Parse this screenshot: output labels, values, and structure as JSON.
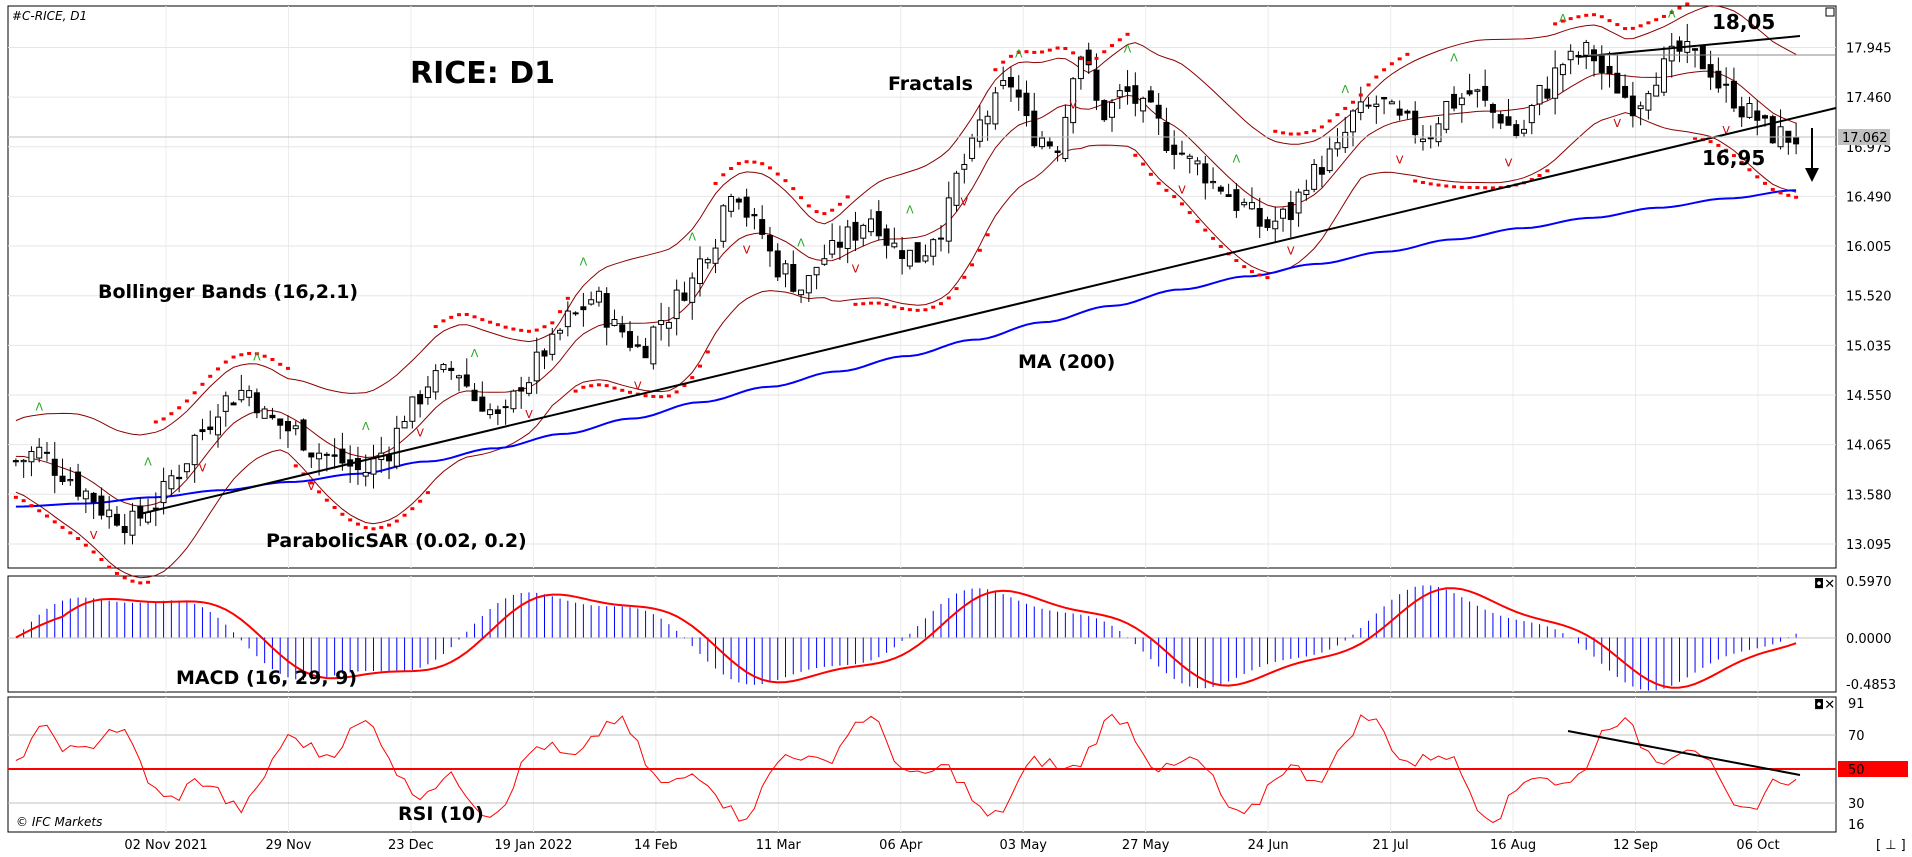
{
  "chart_data": [
    {
      "type": "candlestick",
      "title": "#C-RICE, D1",
      "heading": "RICE: D1",
      "x_tick_labels": [
        "02 Nov 2021",
        "29 Nov",
        "23 Dec",
        "19 Jan 2022",
        "14 Feb",
        "11 Mar",
        "06 Apr",
        "03 May",
        "27 May",
        "24 Jun",
        "21 Jul",
        "16 Aug",
        "12 Sep",
        "06 Oct"
      ],
      "y_tick_labels": [
        "17.945",
        "17.460",
        "16.975",
        "16.490",
        "16.005",
        "15.520",
        "15.035",
        "14.550",
        "14.065",
        "13.580",
        "13.095"
      ],
      "ylim": [
        12.86,
        18.35
      ],
      "current_price_label": "17.062",
      "annotations": {
        "bollinger": "Bollinger Bands (16,2.1)",
        "fractals": "Fractals",
        "ma": "MA (200)",
        "psar": "ParabolicSAR (0.02, 0.2)",
        "resistance": "18,05",
        "support": "16,95"
      },
      "series": [
        {
          "name": "MA (200)",
          "color": "#0000ff",
          "values": [
            13.46,
            13.49,
            13.55,
            13.62,
            13.7,
            13.78,
            13.9,
            14.03,
            14.17,
            14.32,
            14.48,
            14.63,
            14.78,
            14.93,
            15.09,
            15.26,
            15.42,
            15.58,
            15.71,
            15.83,
            15.95,
            16.07,
            16.18,
            16.28,
            16.38,
            16.47,
            16.55
          ]
        }
      ],
      "ohlc_approx": [
        13.9,
        14.0,
        13.8,
        13.6,
        13.4,
        13.3,
        13.5,
        13.8,
        14.2,
        14.5,
        14.6,
        14.3,
        14.2,
        14.0,
        13.9,
        13.8,
        14.0,
        14.4,
        14.7,
        14.8,
        14.5,
        14.3,
        14.7,
        15.0,
        15.3,
        15.5,
        15.2,
        15.0,
        15.3,
        15.6,
        16.0,
        16.6,
        16.2,
        15.8,
        15.6,
        15.9,
        16.1,
        16.3,
        16.0,
        15.9,
        16.2,
        16.8,
        17.3,
        17.6,
        17.1,
        17.0,
        17.9,
        17.3,
        17.5,
        17.3,
        17.0,
        16.8,
        16.6,
        16.4,
        16.2,
        16.3,
        16.7,
        16.9,
        17.3,
        17.4,
        17.2,
        17.1,
        17.4,
        17.5,
        17.3,
        17.1,
        17.5,
        17.8,
        17.9,
        17.6,
        17.4,
        17.7,
        17.9,
        17.8,
        17.5,
        17.3,
        17.1,
        17.06
      ],
      "current": 17.062
    },
    {
      "type": "bar",
      "name": "MACD (16, 29, 9)",
      "y_tick_labels": [
        "0.5970",
        "0.0000",
        "-0.4853"
      ],
      "ylim": [
        -0.55,
        0.62
      ],
      "signal_color": "#ff0000",
      "histogram_color": "#0000ff"
    },
    {
      "type": "line",
      "name": "RSI (10)",
      "y_tick_labels": [
        "91",
        "70",
        "50",
        "30",
        "16"
      ],
      "ylim": [
        16,
        91
      ],
      "level": "50",
      "line_color": "#ff0000"
    }
  ],
  "watermark": "© IFC Markets",
  "corner_label": "[ ⊥ ]"
}
